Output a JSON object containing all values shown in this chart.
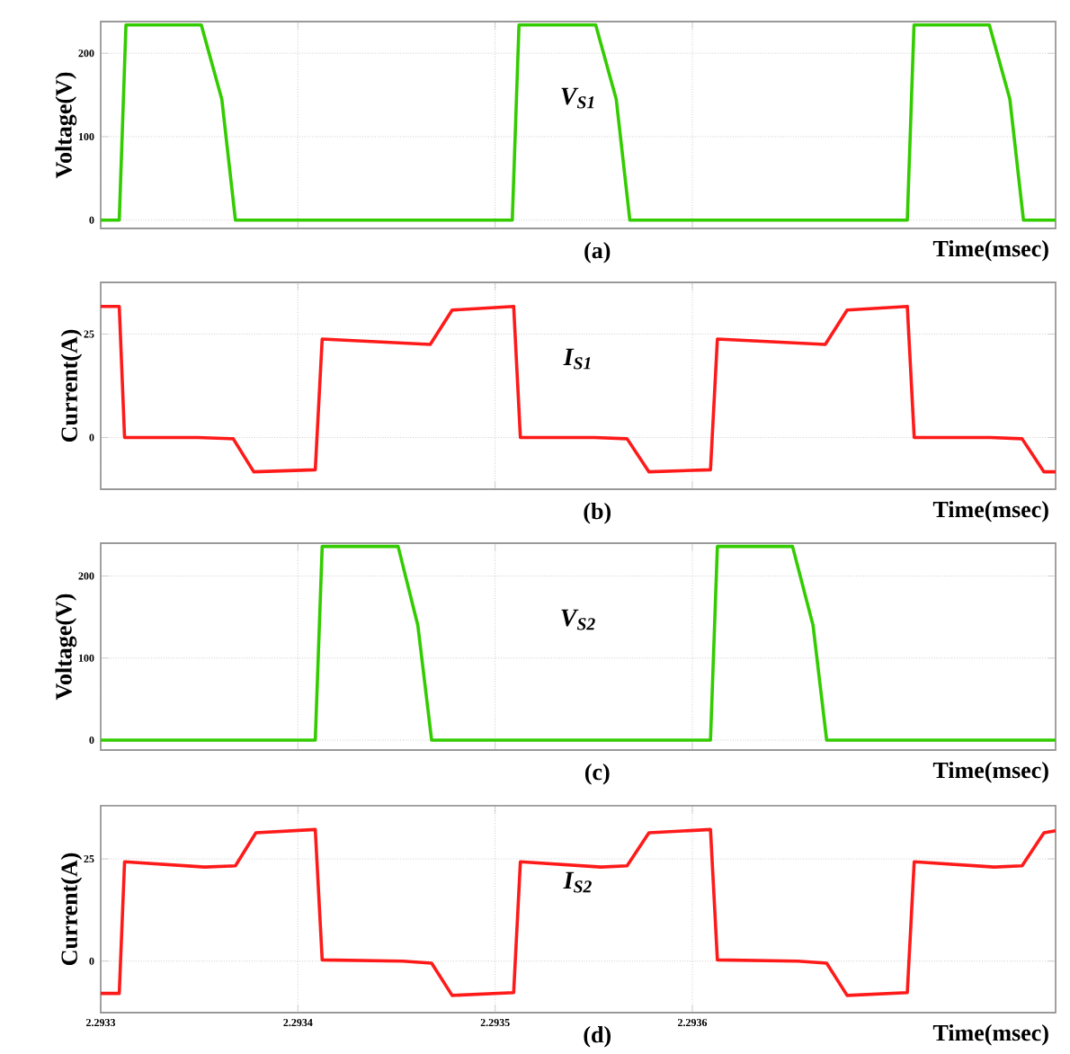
{
  "chart_data": [
    {
      "type": "line",
      "series": [
        {
          "name": "V$_{S1}$",
          "color": "#33cc00",
          "x": [
            2.2933,
            2.2933094,
            2.2933128,
            2.293351,
            2.2933614,
            2.2933683,
            2.2935087,
            2.2935121,
            2.293551,
            2.2935614,
            2.2935683,
            2.293709,
            2.2937124,
            2.2937506,
            2.293761,
            2.2937679,
            2.2937842
          ],
          "values": [
            0,
            0,
            234,
            234,
            145,
            0,
            0,
            234,
            234,
            145,
            0,
            0,
            234,
            234,
            145,
            0,
            0
          ]
        }
      ],
      "xlabel": "Time(msec)",
      "ylabel": "Voltage(V)",
      "annotations": [
        "(a)"
      ],
      "xlim": [
        2.2933,
        2.2937842
      ],
      "xticks": [
        2.2933,
        2.2934,
        2.2935,
        2.2936
      ],
      "ylim": [
        -10,
        238
      ],
      "yticks": [
        0,
        100,
        200
      ],
      "grid": true,
      "tick_labels": "y"
    },
    {
      "type": "line",
      "series": [
        {
          "name": "I$_{S1}$",
          "color": "#ff1a1a",
          "x": [
            2.2933,
            2.2933094,
            2.2933121,
            2.2933492,
            2.2933672,
            2.2933776,
            2.2934088,
            2.2934123,
            2.2934671,
            2.2934782,
            2.2935094,
            2.2935128,
            2.2935503,
            2.2935669,
            2.293578,
            2.2936092,
            2.2936127,
            2.2936674,
            2.2936785,
            2.293709,
            2.2937125,
            2.2937513,
            2.2937672,
            2.2937783,
            2.2937842
          ],
          "values": [
            31.7,
            31.7,
            0,
            0,
            -0.3,
            -8.3,
            -7.8,
            23.8,
            22.5,
            30.8,
            31.7,
            0,
            0,
            -0.3,
            -8.3,
            -7.8,
            23.8,
            22.5,
            30.8,
            31.7,
            0,
            0,
            -0.3,
            -8.3,
            -8.3
          ]
        }
      ],
      "xlabel": "Time(msec)",
      "ylabel": "Current(A)",
      "annotations": [
        "(b)"
      ],
      "xlim": [
        2.2933,
        2.2937842
      ],
      "xticks": [
        2.2933,
        2.2934,
        2.2935,
        2.2936
      ],
      "ylim": [
        -12.5,
        37.5
      ],
      "yticks": [
        0,
        25
      ],
      "grid": true,
      "tick_labels": "y"
    },
    {
      "type": "line",
      "series": [
        {
          "name": "V$_{S2}$",
          "color": "#33cc00",
          "x": [
            2.2933,
            2.2934088,
            2.2934123,
            2.2934508,
            2.2934608,
            2.2934678,
            2.2936092,
            2.2936127,
            2.2936508,
            2.2936612,
            2.2936681,
            2.2937842
          ],
          "values": [
            0,
            0,
            236,
            236,
            140,
            0,
            0,
            236,
            236,
            140,
            0,
            0
          ]
        }
      ],
      "xlabel": "Time(msec)",
      "ylabel": "Voltage(V)",
      "annotations": [
        "(c)"
      ],
      "xlim": [
        2.2933,
        2.2937842
      ],
      "xticks": [
        2.2933,
        2.2934,
        2.2935,
        2.2936
      ],
      "ylim": [
        -12,
        240
      ],
      "yticks": [
        0,
        100,
        200
      ],
      "grid": true,
      "tick_labels": "y"
    },
    {
      "type": "line",
      "series": [
        {
          "name": "I$_{S2}$",
          "color": "#ff1a1a",
          "x": [
            2.2933,
            2.2933094,
            2.2933121,
            2.2933527,
            2.2933683,
            2.2933787,
            2.2934088,
            2.2934123,
            2.2934532,
            2.2934678,
            2.2934782,
            2.2935094,
            2.2935128,
            2.2935537,
            2.2935669,
            2.293578,
            2.2936092,
            2.2936127,
            2.2936536,
            2.2936681,
            2.2936785,
            2.293709,
            2.2937125,
            2.293753,
            2.2937672,
            2.2937783,
            2.2937842
          ],
          "values": [
            -7.9,
            -7.9,
            24.3,
            23,
            23.3,
            31.4,
            32.2,
            0.3,
            0,
            -0.5,
            -8.4,
            -7.7,
            24.3,
            23,
            23.3,
            31.4,
            32.2,
            0.3,
            0,
            -0.5,
            -8.4,
            -7.7,
            24.3,
            23,
            23.3,
            31.4,
            31.9
          ]
        }
      ],
      "xlabel": "Time(msec)",
      "ylabel": "Current(A)",
      "annotations": [
        "(d)"
      ],
      "xlim": [
        2.2933,
        2.2937842
      ],
      "xticks": [
        2.2933,
        2.2934,
        2.2935,
        2.2936
      ],
      "ylim": [
        -12.6,
        38
      ],
      "yticks": [
        0,
        25
      ],
      "grid": true
    }
  ]
}
